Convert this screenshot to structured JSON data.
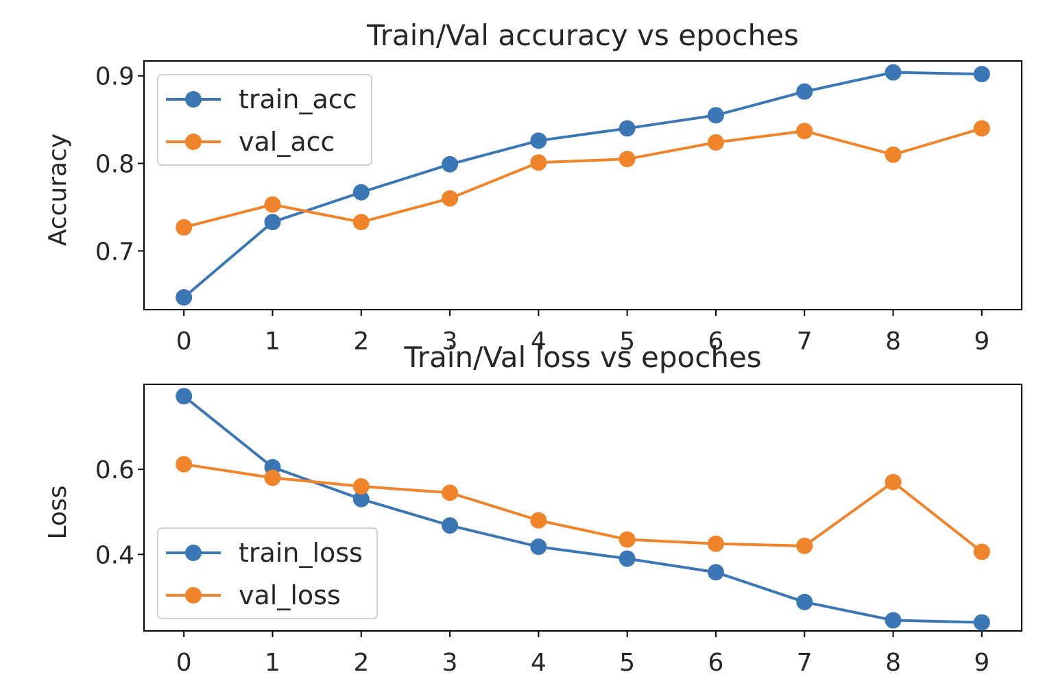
{
  "chart_data": [
    {
      "type": "line",
      "title": "Train/Val accuracy vs epoches",
      "xlabel": "",
      "ylabel": "Accuracy",
      "x": [
        0,
        1,
        2,
        3,
        4,
        5,
        6,
        7,
        8,
        9
      ],
      "xlim": [
        -0.45,
        9.45
      ],
      "ylim": [
        0.633,
        0.917
      ],
      "yticks": [
        0.7,
        0.8,
        0.9
      ],
      "ytick_labels": [
        "0.7",
        "0.8",
        "0.9"
      ],
      "xtick_labels": [
        "0",
        "1",
        "2",
        "3",
        "4",
        "5",
        "6",
        "7",
        "8",
        "9"
      ],
      "legend_position": "upper-left",
      "grid": false,
      "series": [
        {
          "name": "train_acc",
          "color": "#3a77b4",
          "values": [
            0.647,
            0.733,
            0.767,
            0.799,
            0.826,
            0.84,
            0.855,
            0.882,
            0.904,
            0.902
          ]
        },
        {
          "name": "val_acc",
          "color": "#f0842a",
          "values": [
            0.727,
            0.753,
            0.733,
            0.76,
            0.801,
            0.805,
            0.824,
            0.837,
            0.81,
            0.84
          ]
        }
      ]
    },
    {
      "type": "line",
      "title": "Train/Val loss vs epoches",
      "xlabel": "",
      "ylabel": "Loss",
      "x": [
        0,
        1,
        2,
        3,
        4,
        5,
        6,
        7,
        8,
        9
      ],
      "xlim": [
        -0.45,
        9.45
      ],
      "ylim": [
        0.22,
        0.8
      ],
      "yticks": [
        0.4,
        0.6
      ],
      "ytick_labels": [
        "0.4",
        "0.6"
      ],
      "xtick_labels": [
        "0",
        "1",
        "2",
        "3",
        "4",
        "5",
        "6",
        "7",
        "8",
        "9"
      ],
      "legend_position": "lower-left",
      "grid": false,
      "series": [
        {
          "name": "train_loss",
          "color": "#3a77b4",
          "values": [
            0.772,
            0.605,
            0.53,
            0.468,
            0.418,
            0.39,
            0.358,
            0.288,
            0.245,
            0.24
          ]
        },
        {
          "name": "val_loss",
          "color": "#f0842a",
          "values": [
            0.612,
            0.58,
            0.56,
            0.545,
            0.48,
            0.435,
            0.425,
            0.42,
            0.57,
            0.406
          ]
        }
      ]
    }
  ]
}
